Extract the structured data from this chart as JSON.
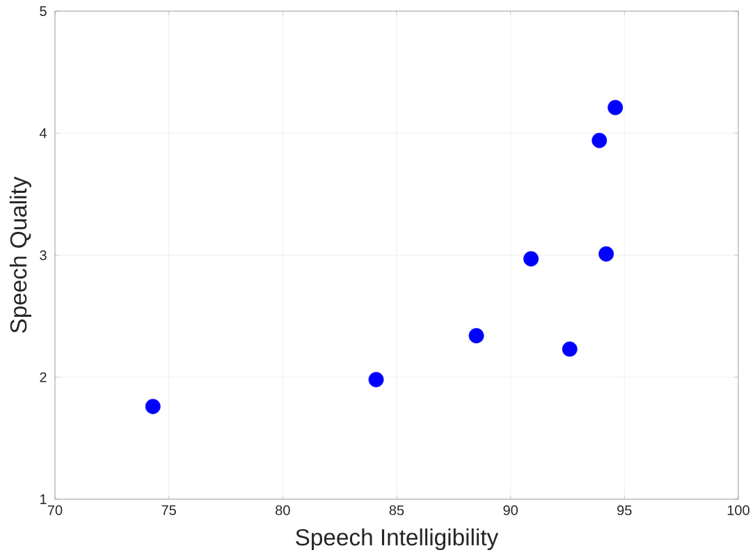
{
  "chart_data": {
    "type": "scatter",
    "xlabel": "Speech Intelligibility",
    "ylabel": "Speech Quality",
    "x": [
      74.3,
      84.1,
      88.5,
      90.9,
      92.6,
      94.2,
      93.9,
      94.6
    ],
    "values": [
      1.76,
      1.98,
      2.34,
      2.97,
      2.23,
      3.01,
      3.94,
      4.21
    ],
    "color": "#0000ff",
    "marker": "circle",
    "grid": true,
    "xlim": [
      70,
      100
    ],
    "xticks": [
      70,
      75,
      80,
      85,
      90,
      95,
      100
    ],
    "ylim": [
      1,
      5
    ],
    "yticks": [
      1,
      2,
      3,
      4,
      5
    ]
  }
}
